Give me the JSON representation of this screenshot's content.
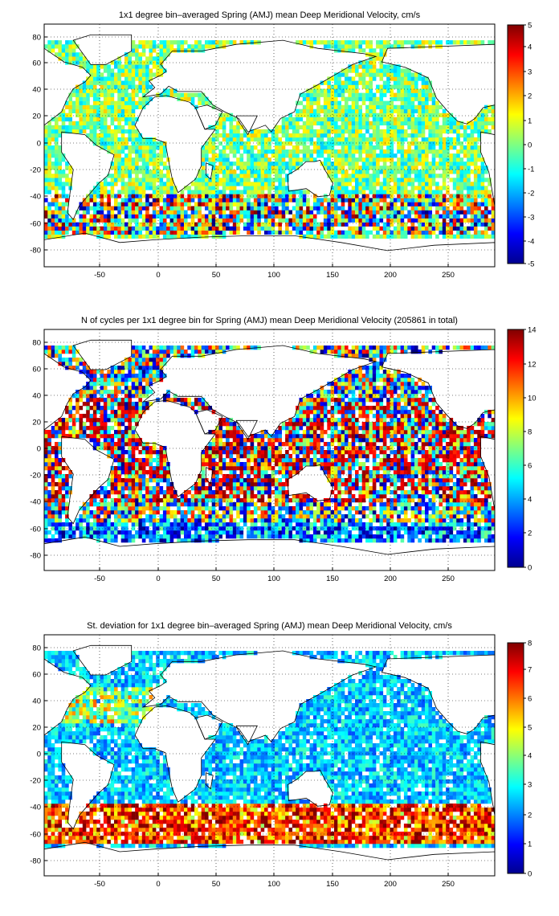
{
  "panels": [
    {
      "title": "1x1 degree bin–averaged Spring (AMJ) mean Deep Meridional Velocity, cm/s",
      "variable": "mean-velocity",
      "x_ticks": [
        "-50",
        "0",
        "50",
        "100",
        "150",
        "200",
        "250"
      ],
      "y_ticks": [
        "80",
        "60",
        "40",
        "20",
        "0",
        "-20",
        "-40",
        "-60",
        "-80"
      ],
      "colorbar_ticks": [
        "5",
        "4",
        "3",
        "2",
        "1",
        "0",
        "-1",
        "-2",
        "-3",
        "-4",
        "-5"
      ],
      "colorbar_range": [
        -5,
        5
      ],
      "colormap": "jet"
    },
    {
      "title": "N of cycles per 1x1 degree bin for Spring (AMJ) mean Deep Meridional Velocity (205861 in total)",
      "variable": "cycle-count",
      "x_ticks": [
        "-50",
        "0",
        "50",
        "100",
        "150",
        "200",
        "250"
      ],
      "y_ticks": [
        "80",
        "60",
        "40",
        "20",
        "0",
        "-20",
        "-40",
        "-60",
        "-80"
      ],
      "colorbar_ticks": [
        "14",
        "12",
        "10",
        "8",
        "6",
        "4",
        "2",
        "0"
      ],
      "colorbar_range": [
        0,
        14
      ],
      "colormap": "jet"
    },
    {
      "title": "St. deviation for 1x1 degree bin–averaged Spring (AMJ) mean Deep Meridional Velocity, cm/s",
      "variable": "std-deviation",
      "x_ticks": [
        "-50",
        "0",
        "50",
        "100",
        "150",
        "200",
        "250"
      ],
      "y_ticks": [
        "80",
        "60",
        "40",
        "20",
        "0",
        "-20",
        "-40",
        "-60",
        "-80"
      ],
      "colorbar_ticks": [
        "8",
        "7",
        "6",
        "5",
        "4",
        "3",
        "2",
        "1",
        "0"
      ],
      "colorbar_range": [
        0,
        8.3
      ],
      "colormap": "jet"
    }
  ],
  "chart_data": [
    {
      "type": "heatmap",
      "title": "1x1 degree bin–averaged Spring (AMJ) mean Deep Meridional Velocity, cm/s",
      "xlim": [
        -95,
        292
      ],
      "ylim": [
        -90,
        90
      ],
      "colorbar_range": [
        -5,
        5
      ],
      "grid": true
    },
    {
      "type": "heatmap",
      "title": "N of cycles per 1x1 degree bin for Spring (AMJ) mean Deep Meridional Velocity (205861 in total)",
      "xlim": [
        -95,
        292
      ],
      "ylim": [
        -90,
        90
      ],
      "colorbar_range": [
        0,
        14
      ],
      "grid": true
    },
    {
      "type": "heatmap",
      "title": "St. deviation for 1x1 degree bin–averaged Spring (AMJ) mean Deep Meridional Velocity, cm/s",
      "xlim": [
        -95,
        292
      ],
      "ylim": [
        -90,
        90
      ],
      "colorbar_range": [
        0,
        8.3
      ],
      "grid": true
    }
  ]
}
